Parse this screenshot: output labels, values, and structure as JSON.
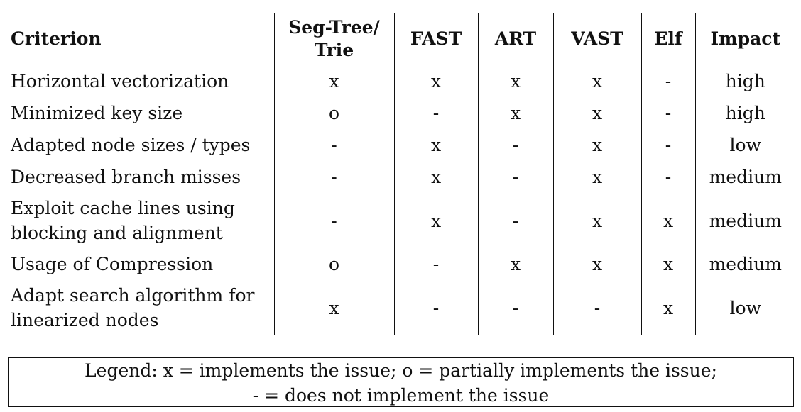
{
  "table": {
    "headers": [
      "Criterion",
      "Seg-Tree/\nTrie",
      "FAST",
      "ART",
      "VAST",
      "Elf",
      "Impact"
    ],
    "header_seg_line1": "Seg-Tree/",
    "header_seg_line2": "Trie",
    "rows": [
      {
        "criterion": "Horizontal vectorization",
        "cells": [
          "x",
          "x",
          "x",
          "x",
          "-"
        ],
        "impact": "high"
      },
      {
        "criterion": "Minimized key size",
        "cells": [
          "o",
          "-",
          "x",
          "x",
          "-"
        ],
        "impact": "high"
      },
      {
        "criterion": "Adapted node sizes / types",
        "cells": [
          "-",
          "x",
          "-",
          "x",
          "-"
        ],
        "impact": "low"
      },
      {
        "criterion": "Decreased branch misses",
        "cells": [
          "-",
          "x",
          "-",
          "x",
          "-"
        ],
        "impact": "medium"
      },
      {
        "criterion_line1": "Exploit cache lines using",
        "criterion_line2": "blocking and alignment",
        "cells": [
          "-",
          "x",
          "-",
          "x",
          "x"
        ],
        "impact": "medium"
      },
      {
        "criterion": "Usage of Compression",
        "cells": [
          "o",
          "-",
          "x",
          "x",
          "x"
        ],
        "impact": "medium"
      },
      {
        "criterion_line1": "Adapt search algorithm for",
        "criterion_line2": "linearized nodes",
        "cells": [
          "x",
          "-",
          "-",
          "-",
          "x"
        ],
        "impact": "low"
      }
    ]
  },
  "legend": {
    "line1": "Legend: x = implements the issue; o = partially implements the issue;",
    "line2": "- = does not implement the issue"
  }
}
